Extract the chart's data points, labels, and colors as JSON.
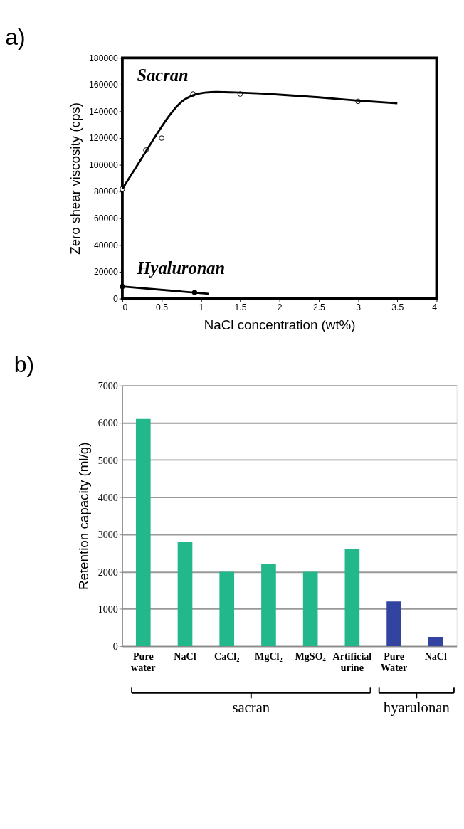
{
  "chart_data": [
    {
      "type": "scatter",
      "title": "a)",
      "xlabel": "NaCl concentration (wt%)",
      "ylabel": "Zero shear viscosity (cps)",
      "xlim": [
        0,
        4
      ],
      "xticks": [
        0,
        0.5,
        1,
        1.5,
        2,
        2.5,
        3,
        3.5,
        4
      ],
      "ylim": [
        0,
        180000
      ],
      "yticks": [
        0,
        20000,
        40000,
        60000,
        80000,
        100000,
        120000,
        140000,
        160000,
        180000
      ],
      "grid": false,
      "legend": false,
      "series": [
        {
          "name": "Sacran",
          "type": "scatter",
          "marker": "circle",
          "color": "#ffffff",
          "x": [
            0,
            0.3,
            0.5,
            0.9,
            1.5,
            3
          ],
          "values": [
            82000,
            111000,
            120000,
            153000,
            153000,
            147500
          ]
        },
        {
          "type": "line",
          "marker": "none",
          "line_style": "solid",
          "color": "#000000",
          "x": [
            0,
            0.15,
            0.3,
            0.45,
            0.6,
            0.75,
            0.9,
            1.05,
            1.2,
            1.5,
            2,
            2.5,
            3,
            3.5
          ],
          "values": [
            82000,
            96000,
            110000,
            124000,
            137000,
            147000,
            152000,
            154000,
            154500,
            154000,
            152500,
            150500,
            148000,
            146000
          ]
        },
        {
          "name": "Hyaluronan",
          "type": "scatter",
          "marker": "circle",
          "color": "#000000",
          "x": [
            0,
            0.92
          ],
          "values": [
            9000,
            4500
          ]
        },
        {
          "type": "line",
          "marker": "none",
          "line_style": "solid",
          "color": "#000000",
          "x": [
            0,
            1.1
          ],
          "values": [
            9000,
            3500
          ]
        }
      ]
    },
    {
      "type": "bar",
      "title": "b)",
      "ylabel": "Retention capacity (ml/g)",
      "categories": [
        "Pure water",
        "NaCl",
        "CaCl₂",
        "MgCl₂",
        "MgSO₄",
        "Artificial urine",
        "Pure Water",
        "NaCl"
      ],
      "values": [
        6100,
        2800,
        2000,
        2200,
        2000,
        2600,
        1200,
        250
      ],
      "colors": [
        "#22b88c",
        "#22b88c",
        "#22b88c",
        "#22b88c",
        "#22b88c",
        "#22b88c",
        "#3344a0",
        "#3344a0"
      ],
      "ylim": [
        0,
        7000
      ],
      "yticks": [
        0,
        1000,
        2000,
        3000,
        4000,
        5000,
        6000,
        7000
      ],
      "grid": "y",
      "legend": false,
      "annotations": [
        "sacran",
        "hyarulonan"
      ]
    }
  ]
}
